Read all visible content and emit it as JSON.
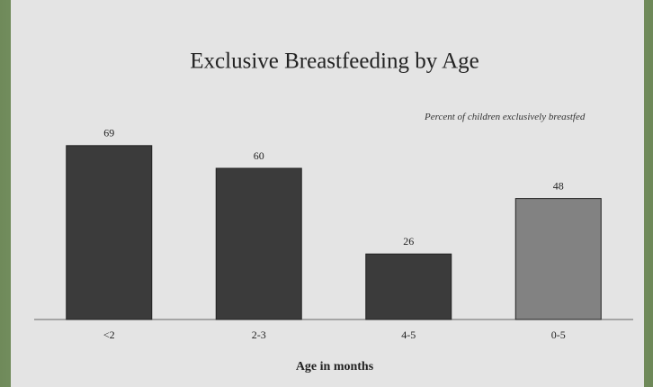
{
  "chart_data": {
    "type": "bar",
    "title": "Exclusive Breastfeeding by Age",
    "annotation": "Percent of children exclusively breastfed",
    "x_label": "Age in months",
    "categories": [
      "<2",
      "2-3",
      "4-5",
      "0-5"
    ],
    "values": [
      69,
      60,
      26,
      48
    ],
    "colors": [
      "#3b3b3b",
      "#3b3b3b",
      "#3b3b3b",
      "#828282"
    ]
  }
}
